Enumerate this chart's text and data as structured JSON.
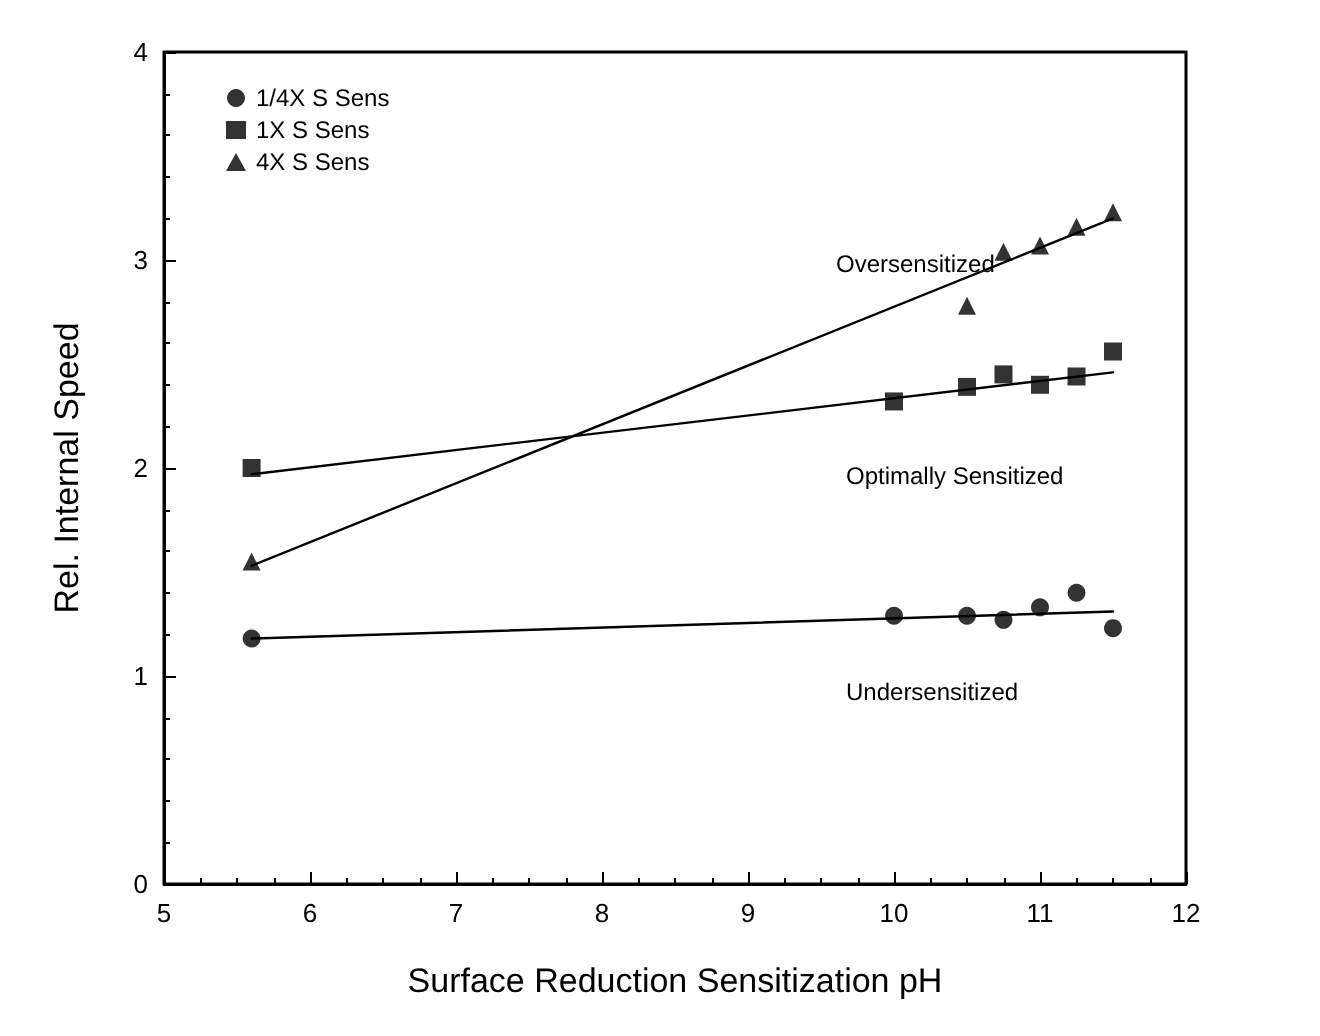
{
  "chart_data": {
    "type": "scatter",
    "xlabel": "Surface Reduction Sensitization pH",
    "ylabel": "Rel. Internal Speed",
    "xlim": [
      5,
      12
    ],
    "xticks": [
      5,
      6,
      7,
      8,
      9,
      10,
      11,
      12
    ],
    "ylim": [
      0,
      4
    ],
    "yticks": [
      0,
      1,
      2,
      3,
      4
    ],
    "grid": false,
    "legend": "top left",
    "series": [
      {
        "name": "1/4X S Sens",
        "marker": "circle",
        "color": "#000000",
        "x": [
          5.6,
          10,
          10.5,
          10.75,
          11,
          11.25,
          11.5
        ],
        "values": [
          1.18,
          1.29,
          1.29,
          1.27,
          1.33,
          1.4,
          1.23
        ]
      },
      {
        "name": "1X S Sens",
        "marker": "square",
        "color": "#000000",
        "x": [
          5.6,
          10,
          10.5,
          10.75,
          11,
          11.25,
          11.5
        ],
        "values": [
          2,
          2.32,
          2.39,
          2.45,
          2.4,
          2.44,
          2.56
        ]
      },
      {
        "name": "4X S Sens",
        "marker": "triangle",
        "color": "#000000",
        "x": [
          5.6,
          10.5,
          10.75,
          11,
          11.25,
          11.5
        ],
        "values": [
          1.55,
          2.78,
          3.04,
          3.07,
          3.16,
          3.23
        ]
      },
      {
        "type": "line",
        "marker": "none",
        "line_style": "solid",
        "color": "#000000",
        "x": [
          5.6,
          11.5
        ],
        "values": [
          1.18,
          1.31
        ]
      },
      {
        "type": "line",
        "marker": "none",
        "line_style": "solid",
        "color": "#000000",
        "x": [
          5.6,
          11.5
        ],
        "values": [
          1.97,
          2.46
        ]
      },
      {
        "type": "line",
        "marker": "none",
        "line_style": "solid",
        "color": "#000000",
        "x": [
          5.6,
          11.5
        ],
        "values": [
          1.53,
          3.2
        ]
      }
    ],
    "annotations": [
      "Oversensitized",
      "Optimally Sensitized",
      "Undersensitized"
    ]
  }
}
